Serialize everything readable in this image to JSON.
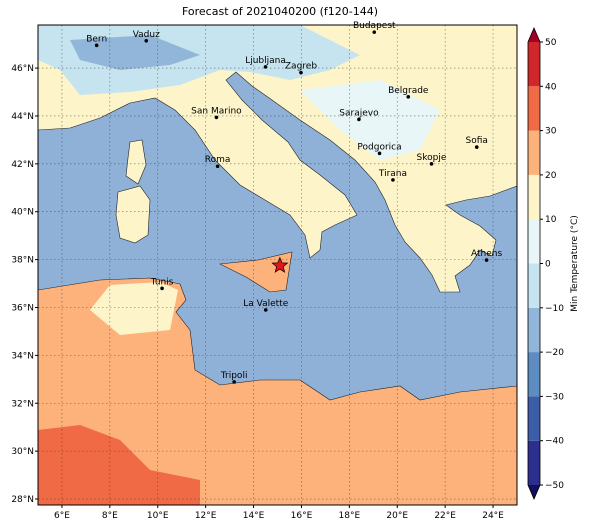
{
  "title": "Forecast of 2021040200 (f120-144)",
  "map": {
    "lonlim": [
      5,
      25
    ],
    "latlim": [
      27.75,
      47.8
    ],
    "lon_ticks": [
      {
        "value": 6,
        "label": "6°E"
      },
      {
        "value": 8,
        "label": "8°E"
      },
      {
        "value": 10,
        "label": "10°E"
      },
      {
        "value": 12,
        "label": "12°E"
      },
      {
        "value": 14,
        "label": "14°E"
      },
      {
        "value": 16,
        "label": "16°E"
      },
      {
        "value": 18,
        "label": "18°E"
      },
      {
        "value": 20,
        "label": "20°E"
      },
      {
        "value": 22,
        "label": "22°E"
      },
      {
        "value": 24,
        "label": "24°E"
      }
    ],
    "lat_ticks": [
      {
        "value": 28,
        "label": "28°N"
      },
      {
        "value": 30,
        "label": "30°N"
      },
      {
        "value": 32,
        "label": "32°N"
      },
      {
        "value": 34,
        "label": "34°N"
      },
      {
        "value": 36,
        "label": "36°N"
      },
      {
        "value": 38,
        "label": "38°N"
      },
      {
        "value": 40,
        "label": "40°N"
      },
      {
        "value": 42,
        "label": "42°N"
      },
      {
        "value": 44,
        "label": "44°N"
      },
      {
        "value": 46,
        "label": "46°N"
      }
    ]
  },
  "cities": [
    "Bern",
    "Vaduz",
    "Budapest",
    "Ljubljana",
    "Zagreb",
    "Belgrade",
    "San Marino",
    "Sarajevo",
    "Sofia",
    "Podgorica",
    "Skopje",
    "Roma",
    "Tirana",
    "Athens",
    "Tunis",
    "La Valette",
    "Tripoli"
  ],
  "colorbar": {
    "label": "Min Temperature (°C)",
    "lim": [
      -50,
      50
    ],
    "ticks": [
      {
        "value": -50,
        "label": "−50"
      },
      {
        "value": -40,
        "label": "−40"
      },
      {
        "value": -30,
        "label": "−30"
      },
      {
        "value": -20,
        "label": "−20"
      },
      {
        "value": -10,
        "label": "−10"
      },
      0,
      10,
      20,
      30,
      40,
      50
    ],
    "colors": [
      "#2b2f8e",
      "#3c5ea8",
      "#5d8cc0",
      "#92b6d9",
      "#c6e4ef",
      "#e9f6f7",
      "#fdf5c9",
      "#fdb27c",
      "#f06a45",
      "#d0282a"
    ],
    "under": "#12105e",
    "over": "#a40026"
  }
}
